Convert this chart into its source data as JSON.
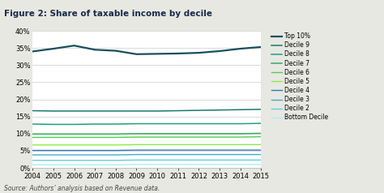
{
  "title": "Figure 2: Share of taxable income by decile",
  "source": "Source: Authors’ analysis based on Revenue data.",
  "years": [
    2004,
    2005,
    2006,
    2007,
    2008,
    2009,
    2010,
    2011,
    2012,
    2013,
    2014,
    2015
  ],
  "series": {
    "Top 10%": [
      34.0,
      34.8,
      35.7,
      34.5,
      34.2,
      33.2,
      33.3,
      33.4,
      33.6,
      34.1,
      34.8,
      35.3
    ],
    "Decile 9": [
      16.7,
      16.6,
      16.6,
      16.6,
      16.6,
      16.6,
      16.6,
      16.7,
      16.8,
      16.9,
      17.0,
      17.1
    ],
    "Decile 8": [
      12.8,
      12.7,
      12.7,
      12.8,
      12.8,
      12.9,
      12.9,
      12.9,
      12.9,
      12.9,
      12.9,
      13.0
    ],
    "Decile 7": [
      9.9,
      9.9,
      9.9,
      9.9,
      9.9,
      10.0,
      10.0,
      10.0,
      10.0,
      10.0,
      10.0,
      10.1
    ],
    "Decile 6": [
      8.9,
      8.9,
      8.9,
      8.9,
      8.9,
      9.0,
      9.0,
      9.0,
      9.0,
      9.0,
      9.0,
      9.1
    ],
    "Decile 5": [
      6.7,
      6.7,
      6.7,
      6.7,
      6.7,
      6.8,
      6.8,
      6.8,
      6.8,
      6.8,
      6.8,
      6.8
    ],
    "Decile 4": [
      5.1,
      5.1,
      5.1,
      5.1,
      5.1,
      5.2,
      5.2,
      5.2,
      5.2,
      5.2,
      5.2,
      5.2
    ],
    "Decile 3": [
      3.8,
      3.8,
      3.8,
      3.8,
      3.8,
      3.9,
      3.9,
      3.9,
      3.9,
      3.9,
      3.9,
      3.9
    ],
    "Decile 2": [
      2.2,
      2.2,
      2.2,
      2.2,
      2.2,
      2.3,
      2.3,
      2.3,
      2.3,
      2.3,
      2.3,
      2.3
    ],
    "Bottom Decile": [
      0.9,
      0.9,
      0.9,
      0.9,
      0.9,
      1.0,
      1.0,
      1.0,
      1.0,
      1.0,
      1.0,
      1.0
    ]
  },
  "colors": {
    "Top 10%": "#1a4f5e",
    "Decile 9": "#1a7a6a",
    "Decile 8": "#20a080",
    "Decile 7": "#3aaa60",
    "Decile 6": "#55cc55",
    "Decile 5": "#88ee44",
    "Decile 4": "#3377bb",
    "Decile 3": "#44aacc",
    "Decile 2": "#66ccdd",
    "Bottom Decile": "#aaeef8"
  },
  "line_widths": {
    "Top 10%": 1.6,
    "Decile 9": 1.1,
    "Decile 8": 1.1,
    "Decile 7": 1.1,
    "Decile 6": 1.0,
    "Decile 5": 1.0,
    "Decile 4": 1.0,
    "Decile 3": 1.0,
    "Decile 2": 1.0,
    "Bottom Decile": 1.0
  },
  "ylim": [
    0,
    0.4
  ],
  "yticks": [
    0.0,
    0.05,
    0.1,
    0.15,
    0.2,
    0.25,
    0.3,
    0.35,
    0.4
  ],
  "ytick_labels": [
    "0%",
    "5%",
    "10%",
    "15%",
    "20%",
    "25%",
    "30%",
    "35%",
    "40%"
  ],
  "background_color": "#e8e8e2",
  "plot_bg_color": "#ffffff",
  "title_color": "#1a2a4a",
  "title_fontsize": 7.5,
  "source_fontsize": 5.5,
  "tick_fontsize": 6.0
}
